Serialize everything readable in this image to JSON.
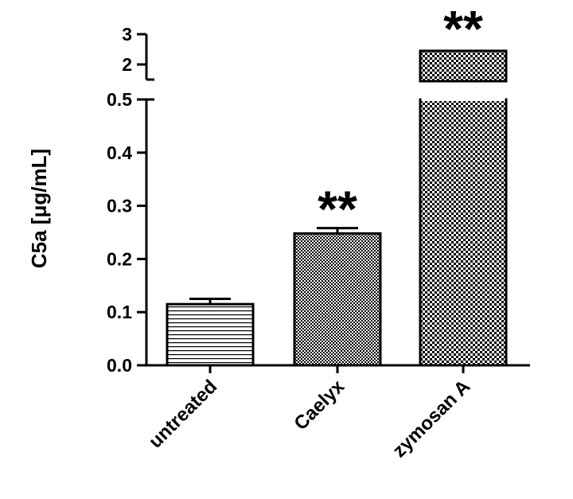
{
  "chart_data": {
    "type": "bar",
    "ylabel": "C5a [μg/mL]",
    "xlabel": "",
    "title": "",
    "categories": [
      "untreated",
      "Caelyx",
      "zymosan A"
    ],
    "values": [
      0.115,
      0.248,
      2.45
    ],
    "errors": [
      0.01,
      0.01,
      null
    ],
    "significance": [
      "",
      "**",
      "**"
    ],
    "patterns": [
      "horizontal-lines",
      "fine-checker",
      "coarse-checker"
    ],
    "y_axis_broken": true,
    "y_segments": [
      {
        "ylim": [
          0,
          0.5
        ],
        "ticks": [
          "0.0",
          "0.1",
          "0.2",
          "0.3",
          "0.4",
          "0.5"
        ]
      },
      {
        "ylim": [
          1.5,
          3
        ],
        "ticks": [
          "2",
          "3"
        ]
      }
    ],
    "grid": false,
    "legend": "none",
    "colors": {
      "bar_outline": "#000000",
      "pattern": "#000000",
      "background": "#ffffff"
    }
  }
}
